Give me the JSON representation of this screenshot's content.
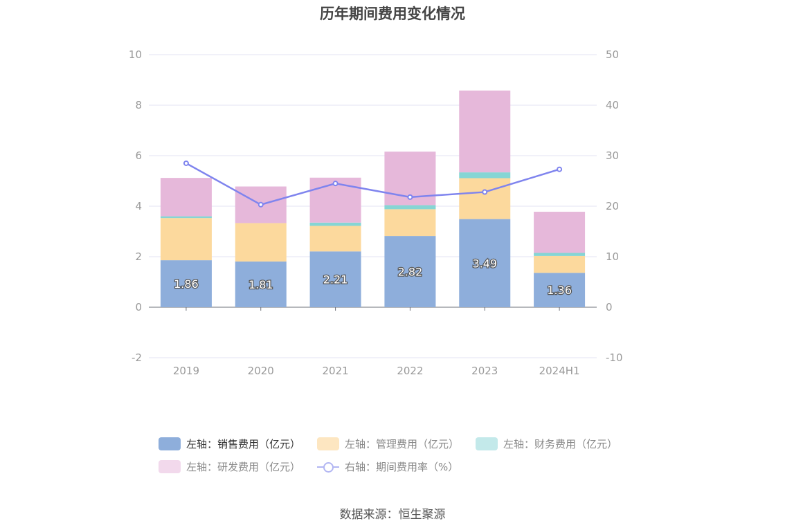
{
  "chart_data": {
    "type": "bar",
    "title": "历年期间费用变化情况",
    "categories": [
      "2019",
      "2020",
      "2021",
      "2022",
      "2023",
      "2024H1"
    ],
    "y_left": {
      "ylim": [
        -2,
        10
      ],
      "ticks": [
        "-2",
        "0",
        "2",
        "4",
        "6",
        "8",
        "10"
      ]
    },
    "y_right": {
      "ylim": [
        -10,
        50
      ],
      "ticks": [
        "-10",
        "0",
        "10",
        "20",
        "30",
        "40",
        "50"
      ]
    },
    "stacked": true,
    "series": [
      {
        "name": "左轴：销售费用（亿元）",
        "axis": "left",
        "color": "#8eaedb",
        "values": [
          1.86,
          1.81,
          2.21,
          2.82,
          3.49,
          1.36
        ],
        "labels": [
          "1.86",
          "1.81",
          "2.21",
          "2.82",
          "3.49",
          "1.36"
        ]
      },
      {
        "name": "左轴：管理费用（亿元）",
        "axis": "left",
        "color": "#fcd99d",
        "values": [
          1.67,
          1.52,
          1.01,
          1.06,
          1.62,
          0.67
        ]
      },
      {
        "name": "左轴：财务费用（亿元）",
        "axis": "left",
        "color": "#86d5d4",
        "values": [
          0.07,
          0.0,
          0.13,
          0.16,
          0.23,
          0.12
        ]
      },
      {
        "name": "左轴：研发费用（亿元）",
        "axis": "left",
        "color": "#e6b8da",
        "values": [
          1.52,
          1.45,
          1.78,
          2.12,
          3.24,
          1.63
        ]
      },
      {
        "name": "右轴：期间费用率（%）",
        "axis": "right",
        "type": "line",
        "color": "#7f84ee",
        "values": [
          28.5,
          20.3,
          24.5,
          21.8,
          22.8,
          27.3
        ]
      }
    ],
    "legend": {
      "position": "bottom",
      "dimmed": [
        false,
        true,
        true,
        true,
        true
      ]
    },
    "grid": true
  },
  "source": "数据来源：恒生聚源"
}
